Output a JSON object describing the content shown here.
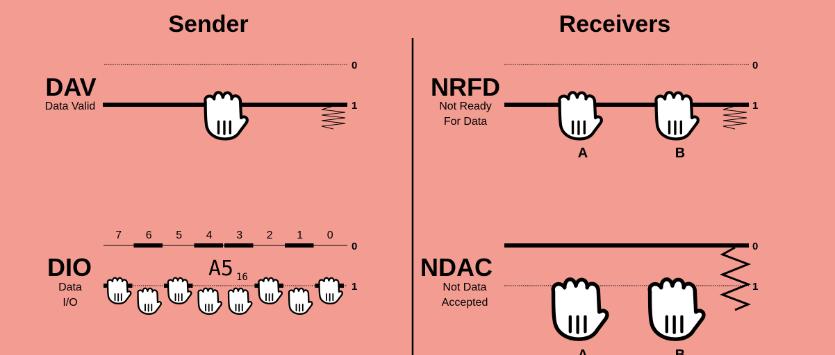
{
  "sender": {
    "title": "Sender",
    "dav": {
      "label": "DAV",
      "description": "Data Valid",
      "level_zero": "0",
      "level_one": "1",
      "state": 1
    },
    "dio": {
      "label": "DIO",
      "description_line1": "Data",
      "description_line2": "I/O",
      "level_zero": "0",
      "level_one": "1",
      "value_text": "A5",
      "value_base": "16",
      "bit_numbers": [
        "7",
        "6",
        "5",
        "4",
        "3",
        "2",
        "1",
        "0"
      ],
      "bit_line_state": [
        1,
        0,
        1,
        0,
        0,
        1,
        0,
        1
      ]
    }
  },
  "receivers": {
    "title": "Receivers",
    "nrfd": {
      "label": "NRFD",
      "description_line1": "Not Ready",
      "description_line2": "For Data",
      "level_zero": "0",
      "level_one": "1",
      "state": 1,
      "receiver_labels": [
        "A",
        "B"
      ]
    },
    "ndac": {
      "label": "NDAC",
      "description_line1": "Not Data",
      "description_line2": "Accepted",
      "level_zero": "0",
      "level_one": "1",
      "state": 0,
      "receiver_labels": [
        "A",
        "B"
      ]
    }
  },
  "colors": {
    "background": "#f39c92",
    "ink": "#000000",
    "hand_fill": "#ffffff"
  },
  "icons": [
    "hand-icon",
    "spring-icon"
  ]
}
